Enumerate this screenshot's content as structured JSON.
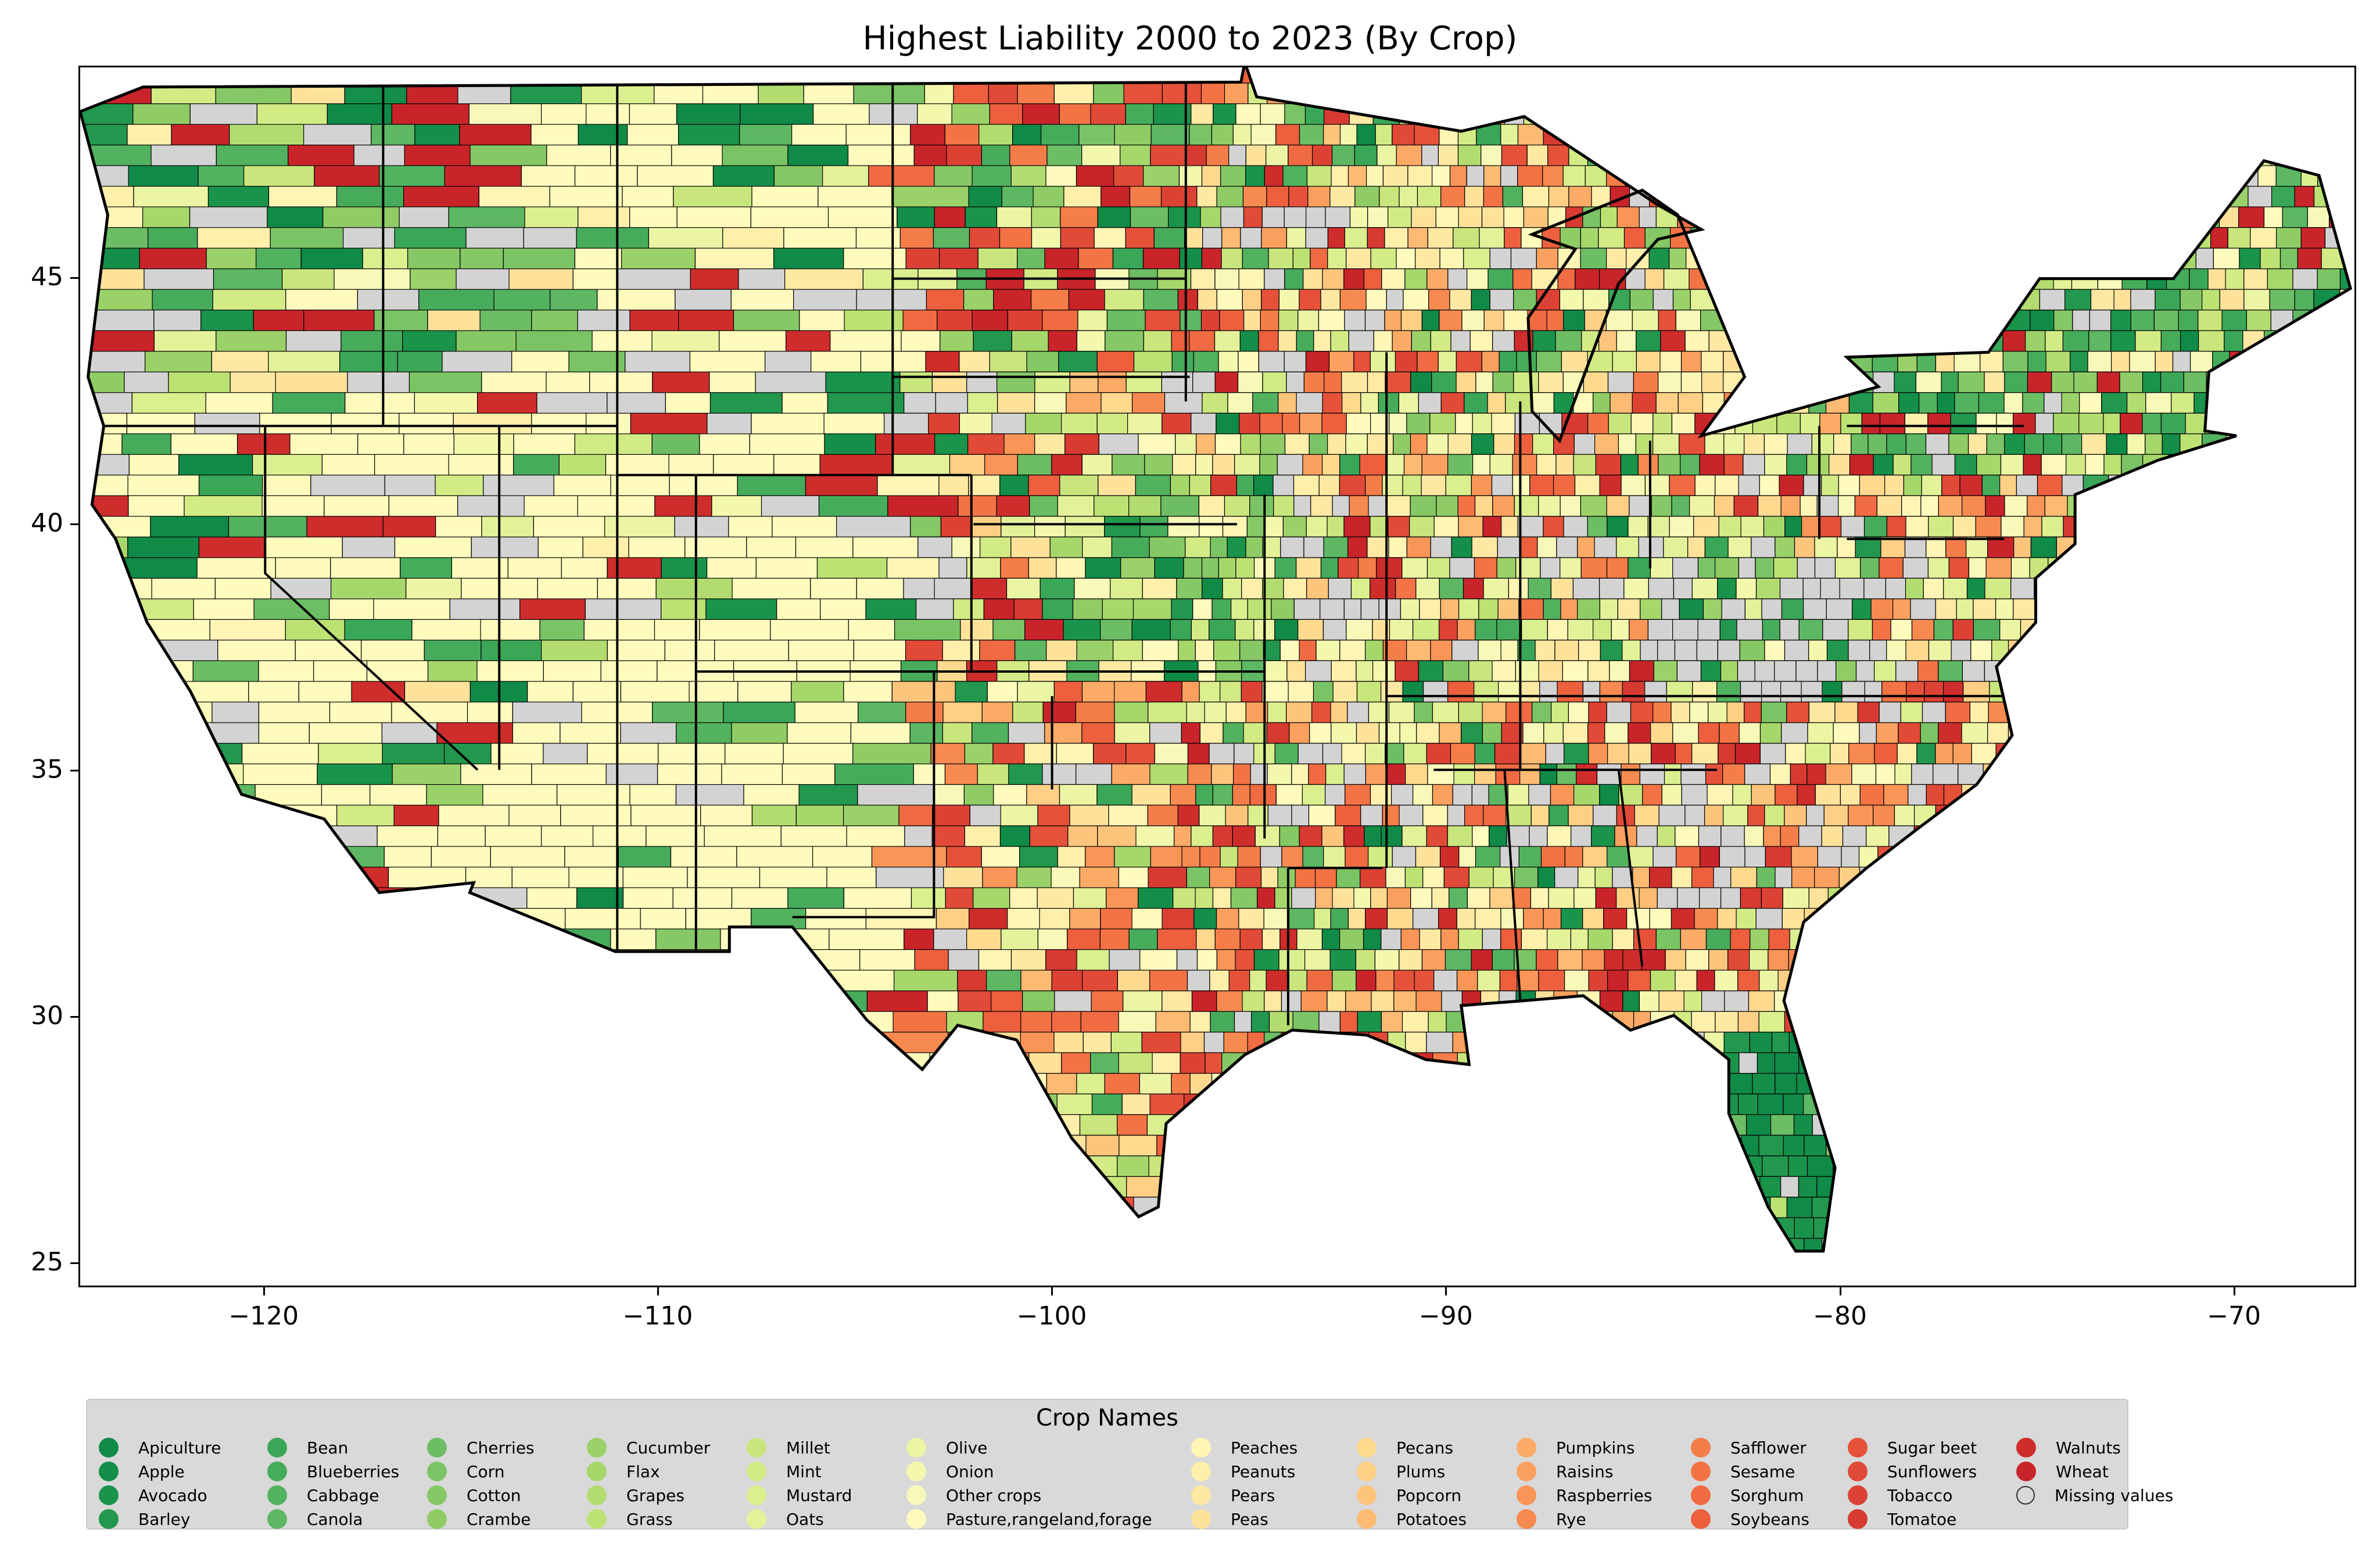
{
  "title": "Highest Liability 2000 to 2023 (By Crop)",
  "axes": {
    "x_ticks": [
      "−120",
      "−110",
      "−100",
      "−90",
      "−80",
      "−70"
    ],
    "y_ticks": [
      "45",
      "40",
      "35",
      "30",
      "25"
    ],
    "xlim": [
      -124.7,
      -66.9
    ],
    "ylim": [
      24.5,
      49.3
    ]
  },
  "legend": {
    "title": "Crop Names",
    "missing_color": "#d3d3d3",
    "items": [
      {
        "label": "Apiculture",
        "color": "#108a47"
      },
      {
        "label": "Apple",
        "color": "#148e48"
      },
      {
        "label": "Avocado",
        "color": "#1a934b"
      },
      {
        "label": "Barley",
        "color": "#22974e"
      },
      {
        "label": "Bean",
        "color": "#3aa657"
      },
      {
        "label": "Blueberries",
        "color": "#46ac5b"
      },
      {
        "label": "Cabbage",
        "color": "#52b25f"
      },
      {
        "label": "Canola",
        "color": "#5db763"
      },
      {
        "label": "Cherries",
        "color": "#6cbd64"
      },
      {
        "label": "Corn",
        "color": "#7bc465"
      },
      {
        "label": "Cotton",
        "color": "#85c865"
      },
      {
        "label": "Crambe",
        "color": "#8fcc66"
      },
      {
        "label": "Cucumber",
        "color": "#9bd169"
      },
      {
        "label": "Flax",
        "color": "#a6d76b"
      },
      {
        "label": "Grapes",
        "color": "#b2dc6f"
      },
      {
        "label": "Grass",
        "color": "#bce274"
      },
      {
        "label": "Millet",
        "color": "#c8e67c"
      },
      {
        "label": "Mint",
        "color": "#d2eb85"
      },
      {
        "label": "Mustard",
        "color": "#dbef8f"
      },
      {
        "label": "Oats",
        "color": "#e3f299"
      },
      {
        "label": "Olive",
        "color": "#ecf5a3"
      },
      {
        "label": "Onion",
        "color": "#f3f8ad"
      },
      {
        "label": "Other crops",
        "color": "#f8f9b8"
      },
      {
        "label": "Pasture,rangeland,forage",
        "color": "#fefbbd"
      },
      {
        "label": "Peaches",
        "color": "#fff5b5"
      },
      {
        "label": "Peanuts",
        "color": "#feefab"
      },
      {
        "label": "Pears",
        "color": "#fee8a2"
      },
      {
        "label": "Peas",
        "color": "#fee29a"
      },
      {
        "label": "Pecans",
        "color": "#fed98e"
      },
      {
        "label": "Plums",
        "color": "#fecf85"
      },
      {
        "label": "Popcorn",
        "color": "#fdc47c"
      },
      {
        "label": "Potatoes",
        "color": "#fdba73"
      },
      {
        "label": "Pumpkins",
        "color": "#fcab67"
      },
      {
        "label": "Raisins",
        "color": "#fba05e"
      },
      {
        "label": "Raspberries",
        "color": "#f99557"
      },
      {
        "label": "Rye",
        "color": "#f78a50"
      },
      {
        "label": "Safflower",
        "color": "#f57d49"
      },
      {
        "label": "Sesame",
        "color": "#f37345"
      },
      {
        "label": "Sorghum",
        "color": "#f06a42"
      },
      {
        "label": "Soybeans",
        "color": "#ed5f3d"
      },
      {
        "label": "Sugar beet",
        "color": "#e6513a"
      },
      {
        "label": "Sunflowers",
        "color": "#e14a37"
      },
      {
        "label": "Tobacco",
        "color": "#dc4234"
      },
      {
        "label": "Tomatoe",
        "color": "#d63a31"
      },
      {
        "label": "Walnuts",
        "color": "#cf2c2c"
      },
      {
        "label": "Wheat",
        "color": "#c9242a"
      },
      {
        "label": "Missing values",
        "color": "#d3d3d3"
      }
    ]
  }
}
